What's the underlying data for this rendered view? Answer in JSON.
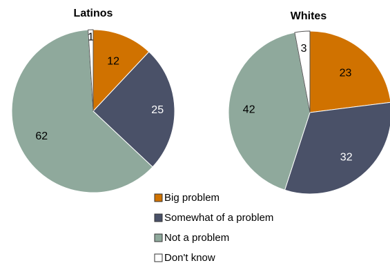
{
  "chart_data": [
    {
      "type": "pie",
      "title": "Latinos",
      "categories": [
        "Big problem",
        "Somewhat of a problem",
        "Not a problem",
        "Don't know"
      ],
      "values": [
        12,
        25,
        62,
        1
      ],
      "colors": [
        "#d07200",
        "#4a5168",
        "#8fa99c",
        "#ffffff"
      ]
    },
    {
      "type": "pie",
      "title": "Whites",
      "categories": [
        "Big problem",
        "Somewhat of a problem",
        "Not a problem",
        "Don't know"
      ],
      "values": [
        23,
        32,
        42,
        3
      ],
      "colors": [
        "#d07200",
        "#4a5168",
        "#8fa99c",
        "#ffffff"
      ]
    }
  ],
  "legend": {
    "placement": "bottom-right",
    "items": [
      {
        "label": "Big problem",
        "color": "#d07200"
      },
      {
        "label": "Somewhat of a problem",
        "color": "#4a5168"
      },
      {
        "label": "Not a problem",
        "color": "#8fa99c"
      },
      {
        "label": "Don't know",
        "color": "#ffffff"
      }
    ]
  }
}
